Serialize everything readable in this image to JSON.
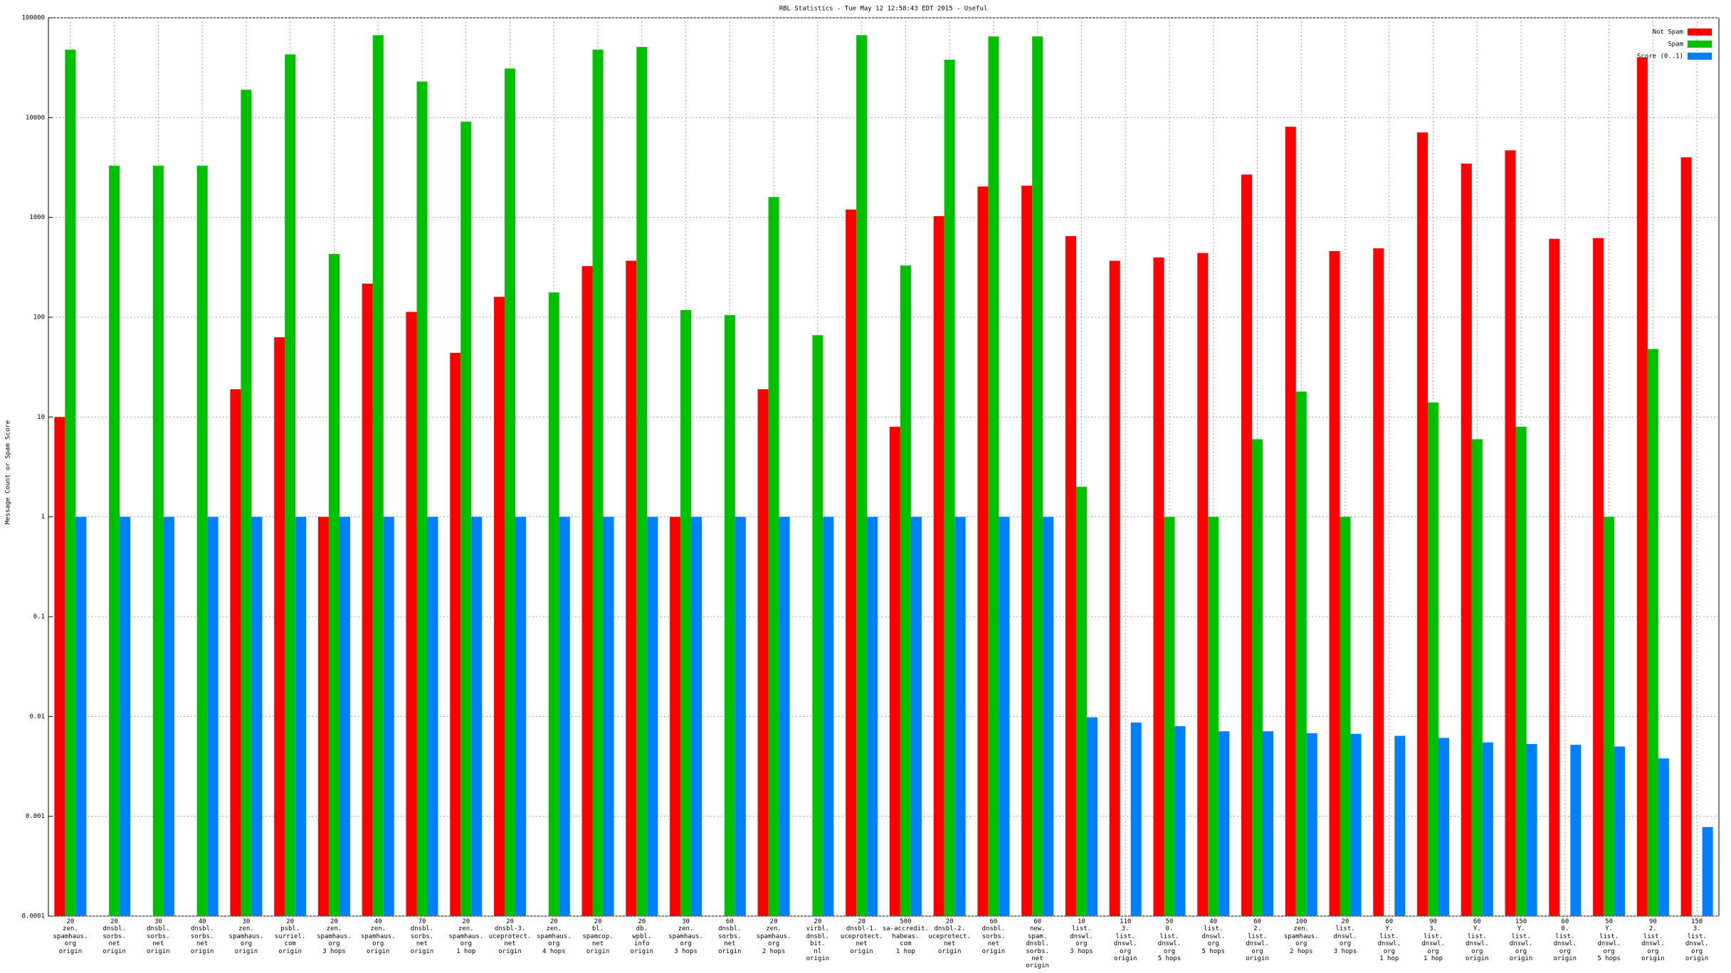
{
  "chart_data": {
    "type": "bar",
    "title": "RBL Statistics - Tue May 12 12:58:43 EDT 2015 - Useful",
    "y_label": "Message Count or Spam Score",
    "log_scale": true,
    "grid": true,
    "legend": "top-right",
    "ylim": [
      0.0001,
      100000
    ],
    "yticks": [
      0.0001,
      0.001,
      0.01,
      0.1,
      1,
      10,
      100,
      1000,
      10000,
      100000
    ],
    "categories": [
      "20\nzen.\nspamhaus.\norg\norigin",
      "20\ndnsbl.\nsorbs.\nnet\norigin",
      "30\ndnsbl.\nsorbs.\nnet\norigin",
      "40\ndnsbl.\nsorbs.\nnet\norigin",
      "30\nzen.\nspamhaus.\norg\norigin",
      "20\npsbl.\nsurriel.\ncom\norigin",
      "20\nzen.\nspamhaus.\norg\n3 hops",
      "40\nzen.\nspamhaus.\norg\norigin",
      "70\ndnsbl.\nsorbs.\nnet\norigin",
      "20\nzen.\nspamhaus.\norg\n1 hop",
      "20\ndnsbl-3.\nuceprotect.\nnet\norigin",
      "20\nzen.\nspamhaus.\norg\n4 hops",
      "20\nbl.\nspamcop.\nnet\norigin",
      "20\ndb.\nwpbl.\ninfo\norigin",
      "30\nzen.\nspamhaus.\norg\n3 hops",
      "60\ndnsbl.\nsorbs.\nnet\norigin",
      "20\nzen.\nspamhaus.\norg\n2 hops",
      "20\nvirbl.\ndnsbl.\nbit.\nnl\norigin",
      "20\ndnsbl-1.\nuceprotect.\nnet\norigin",
      "500\nsa-accredit.\nhabeas.\ncom\n1 hop",
      "20\ndnsbl-2.\nuceprotect.\nnet\norigin",
      "60\ndnsbl.\nsorbs.\nnet\norigin",
      "60\nnew.\nspam.\ndnsbl.\nsorbs.\nnet\norigin",
      "10\nlist.\ndnswl.\norg\n3 hops",
      "110\n3.\nlist.\ndnswl.\norg\norigin",
      "50\n0.\nlist.\ndnswl.\norg\n5 hops",
      "40\nlist.\ndnswl.\norg\n5 hops",
      "60\n2.\nlist.\ndnswl.\norg\norigin",
      "100\nzen.\nspamhaus.\norg\n2 hops",
      "20\nlist.\ndnswl.\norg\n3 hops",
      "60\nY.\nlist.\ndnswl.\norg\n1 hop",
      "90\n3.\nlist.\ndnswl.\norg\n1 hop",
      "60\nY.\nlist.\ndnswl.\norg\norigin",
      "150\nY.\nlist.\ndnswl.\norg\norigin",
      "60\n0.\nlist.\ndnswl.\norg\norigin",
      "50\nY.\nlist.\ndnswl.\norg\n5 hops",
      "90\n2.\nlist.\ndnswl.\norg\norigin",
      "150\n3.\nlist.\ndnswl.\norg\norigin"
    ],
    "series": [
      {
        "name": "Not Spam",
        "color": "#ff0000",
        "values": [
          10,
          null,
          null,
          null,
          19,
          63,
          1,
          217,
          113,
          44,
          160,
          null,
          325,
          368,
          1,
          null,
          19,
          null,
          1200,
          8,
          1030,
          2040,
          2080,
          650,
          368,
          397,
          440,
          2690,
          8100,
          460,
          490,
          7100,
          3460,
          4700,
          610,
          620,
          40000,
          4000
        ]
      },
      {
        "name": "Spam",
        "color": "#00c000",
        "values": [
          48000,
          3300,
          3300,
          3300,
          19000,
          43000,
          430,
          67000,
          23000,
          9100,
          31000,
          177,
          48000,
          51000,
          118,
          105,
          1600,
          66,
          67000,
          330,
          38000,
          65000,
          65000,
          2,
          null,
          1,
          1,
          6,
          18,
          1,
          null,
          14,
          6,
          8,
          null,
          1,
          48,
          null
        ]
      },
      {
        "name": "Score (0..1)",
        "color": "#0080ff",
        "values": [
          1,
          1,
          1,
          1,
          1,
          1,
          1,
          1,
          1,
          1,
          1,
          1,
          1,
          1,
          1,
          1,
          1,
          1,
          1,
          1,
          1,
          1,
          1,
          0.0098,
          0.0087,
          0.008,
          0.0071,
          0.0071,
          0.0068,
          0.0067,
          0.0064,
          0.0061,
          0.0055,
          0.0053,
          0.0052,
          0.005,
          0.0038,
          0.00078
        ]
      }
    ]
  }
}
